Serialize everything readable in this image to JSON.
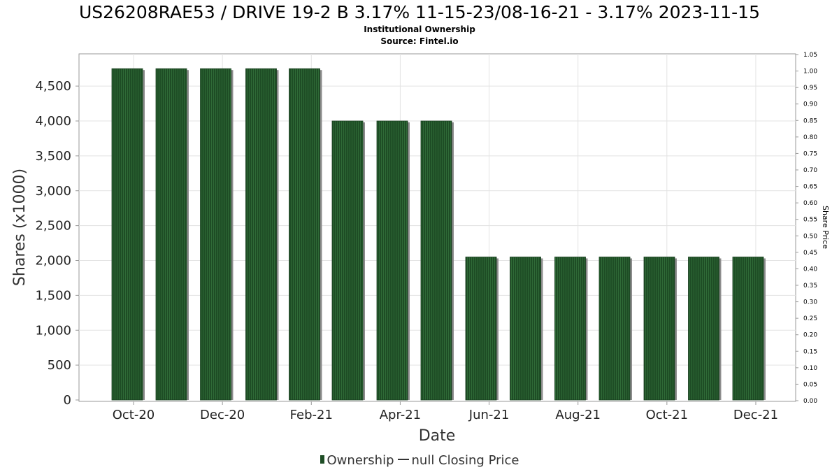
{
  "chart_data": {
    "type": "bar",
    "title": "US26208RAE53 / DRIVE 19-2 B 3.17% 11-15-23/08-16-21 - 3.17% 2023-11-15",
    "subtitle": "Institutional Ownership",
    "source": "Source: Fintel.io",
    "xlabel": "Date",
    "ylabel": "Shares (x1000)",
    "ylabel_right": "Share Price",
    "x_tick_labels": [
      "Oct-20",
      "Dec-20",
      "Feb-21",
      "Apr-21",
      "Jun-21",
      "Aug-21",
      "Oct-21",
      "Dec-21"
    ],
    "y_ticks": [
      "0",
      "500",
      "1,000",
      "1,500",
      "2,000",
      "2,500",
      "3,000",
      "3,500",
      "4,000",
      "4,500"
    ],
    "y_ticks_right": [
      "0.00",
      "0.05",
      "0.10",
      "0.15",
      "0.20",
      "0.25",
      "0.30",
      "0.35",
      "0.40",
      "0.45",
      "0.50",
      "0.55",
      "0.60",
      "0.65",
      "0.70",
      "0.75",
      "0.80",
      "0.85",
      "0.90",
      "0.95",
      "1.00",
      "1.05"
    ],
    "ylim": [
      0,
      5000
    ],
    "ylim_right": [
      0,
      1.05
    ],
    "grid": true,
    "legend_position": "bottom",
    "series": [
      {
        "name": "Ownership",
        "color": "#1e4d25",
        "values": [
          4750,
          4750,
          4750,
          4750,
          4750,
          4000,
          4000,
          4000,
          2050,
          2050,
          2050,
          2050,
          2050,
          2050,
          2050
        ]
      },
      {
        "name": "null Closing Price",
        "color": "#333333",
        "values": []
      }
    ]
  }
}
